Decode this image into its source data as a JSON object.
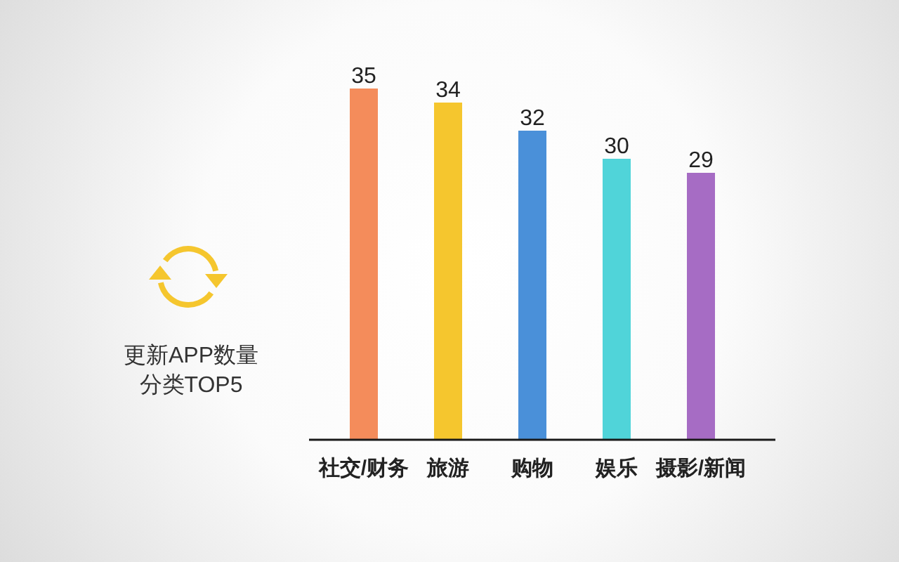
{
  "chart_data": {
    "type": "bar",
    "title": "更新APP数量",
    "subtitle": "分类TOP5",
    "categories": [
      "社交/财务",
      "旅游",
      "购物",
      "娱乐",
      "摄影/新闻"
    ],
    "values": [
      35,
      34,
      32,
      30,
      29
    ],
    "colors": [
      "#f48c5b",
      "#f5c62e",
      "#4a90d9",
      "#50d4d9",
      "#a66cc4"
    ],
    "ylim": [
      10,
      35
    ],
    "data_labels": true
  }
}
